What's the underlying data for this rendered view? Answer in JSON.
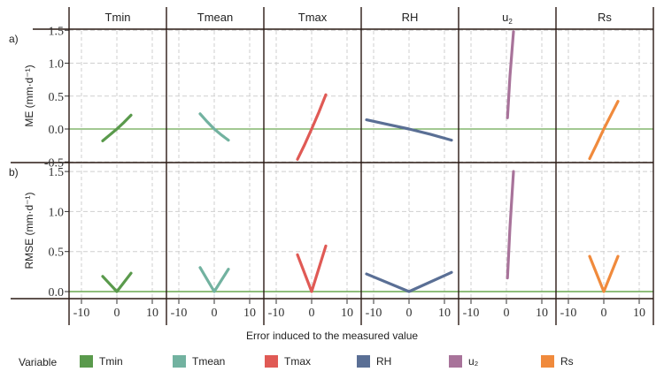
{
  "chart_data": {
    "type": "line",
    "title": "",
    "layout": "2 rows x 6 facet panels",
    "xlabel": "Error induced to the measured value",
    "x_ticks": [
      -10,
      0,
      10
    ],
    "xlim": [
      -13.5,
      14
    ],
    "grid": true,
    "legend_position": "bottom",
    "legend_title": "Variable",
    "panels": [
      "Tmin",
      "Tmean",
      "Tmax",
      "RH",
      "u2",
      "Rs"
    ],
    "panel_labels_display": [
      "Tmin",
      "Tmean",
      "Tmax",
      "RH",
      "u₂",
      "Rs"
    ],
    "rows": [
      {
        "id": "a",
        "tag": "a)",
        "ylabel": "ME (mm·d⁻¹)",
        "y_ticks": [
          1.5,
          1.0,
          0.5,
          0.0,
          -0.5
        ],
        "y_tick_labels": [
          "1.5",
          "1.0",
          "0.5",
          "0.0",
          "-0.5"
        ],
        "ylim": [
          -0.51,
          1.6
        ],
        "series": [
          {
            "name": "Tmin",
            "color": "#5a9a4c",
            "x": [
              -4,
              -2,
              0,
              2,
              4
            ],
            "y": [
              -0.18,
              -0.09,
              0.0,
              0.1,
              0.21
            ]
          },
          {
            "name": "Tmean",
            "color": "#72b2a0",
            "x": [
              -4,
              -2,
              0,
              2,
              4
            ],
            "y": [
              0.23,
              0.11,
              0.0,
              -0.09,
              -0.17
            ]
          },
          {
            "name": "Tmax",
            "color": "#e05a55",
            "x": [
              -4,
              -2,
              0,
              2,
              4
            ],
            "y": [
              -0.46,
              -0.24,
              0.0,
              0.25,
              0.52
            ]
          },
          {
            "name": "RH",
            "color": "#5a6f95",
            "x": [
              -12,
              -6,
              0,
              6,
              12
            ],
            "y": [
              0.14,
              0.07,
              0.0,
              -0.08,
              -0.17
            ]
          },
          {
            "name": "u2",
            "color": "#a8739a",
            "x": [
              0.3,
              1,
              2
            ],
            "y": [
              0.17,
              0.8,
              1.48
            ]
          },
          {
            "name": "Rs",
            "color": "#f08a3c",
            "x": [
              -4,
              -2,
              0,
              2,
              4
            ],
            "y": [
              -0.45,
              -0.23,
              0.0,
              0.21,
              0.42
            ]
          }
        ]
      },
      {
        "id": "b",
        "tag": "b)",
        "ylabel": "RMSE (mm·d⁻¹)",
        "y_ticks": [
          1.5,
          1.0,
          0.5,
          0.0
        ],
        "y_tick_labels": [
          "1.5",
          "1.0",
          "0.5",
          "0.0"
        ],
        "ylim": [
          -0.09,
          1.6
        ],
        "series": [
          {
            "name": "Tmin",
            "color": "#5a9a4c",
            "x": [
              -4,
              0,
              4
            ],
            "y": [
              0.19,
              0.0,
              0.23
            ]
          },
          {
            "name": "Tmean",
            "color": "#72b2a0",
            "x": [
              -4,
              0,
              4
            ],
            "y": [
              0.3,
              0.0,
              0.28
            ]
          },
          {
            "name": "Tmax",
            "color": "#e05a55",
            "x": [
              -4,
              0,
              4
            ],
            "y": [
              0.46,
              0.0,
              0.57
            ]
          },
          {
            "name": "RH",
            "color": "#5a6f95",
            "x": [
              -12,
              0,
              12
            ],
            "y": [
              0.22,
              0.0,
              0.24
            ]
          },
          {
            "name": "u2",
            "color": "#a8739a",
            "x": [
              0.3,
              1,
              2
            ],
            "y": [
              0.17,
              0.8,
              1.5
            ]
          },
          {
            "name": "Rs",
            "color": "#f08a3c",
            "x": [
              -4,
              0,
              4
            ],
            "y": [
              0.44,
              0.0,
              0.44
            ]
          }
        ]
      }
    ],
    "reference_line": {
      "y": 0.0,
      "color": "#6aa84f"
    }
  },
  "legend": {
    "title": "Variable",
    "items": [
      {
        "label": "Tmin",
        "color": "#5a9a4c"
      },
      {
        "label": "Tmean",
        "color": "#72b2a0"
      },
      {
        "label": "Tmax",
        "color": "#e05a55"
      },
      {
        "label": "RH",
        "color": "#5a6f95"
      },
      {
        "label": "u₂",
        "color": "#a8739a"
      },
      {
        "label": "Rs",
        "color": "#f08a3c"
      }
    ]
  }
}
